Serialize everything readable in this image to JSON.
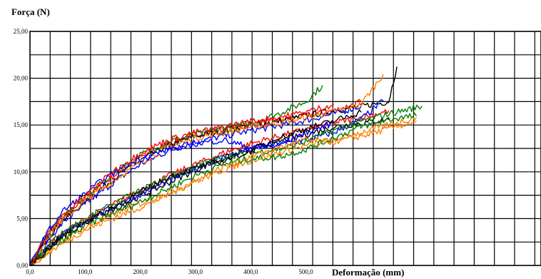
{
  "chart_data": {
    "type": "line",
    "ylabel": "Força (N)",
    "xlabel": "Deformação (mm)",
    "ylim": [
      0,
      25
    ],
    "xlim": [
      0,
      710
    ],
    "yticks": [
      {
        "value": 0,
        "label": "0,00"
      },
      {
        "value": 5,
        "label": "5,00"
      },
      {
        "value": 10,
        "label": "10,00"
      },
      {
        "value": 15,
        "label": "15,00"
      },
      {
        "value": 20,
        "label": "20,00"
      },
      {
        "value": 25,
        "label": "25,00"
      }
    ],
    "xticks": [
      {
        "value": 0,
        "label": "0,0"
      },
      {
        "value": 100,
        "label": "100,0"
      },
      {
        "value": 200,
        "label": "200,0"
      },
      {
        "value": 300,
        "label": "300,0"
      },
      {
        "value": 400,
        "label": "400,0"
      },
      {
        "value": 500,
        "label": "500,0"
      }
    ],
    "grid": true,
    "grid_x_step": 36.6,
    "grid_y_step": 2.5,
    "series": [
      {
        "color": "#ff0000",
        "x": [
          0,
          30,
          60,
          100,
          150,
          200,
          250,
          300,
          350,
          400,
          450,
          500,
          550,
          600
        ],
        "y": [
          0,
          3.0,
          5.0,
          7.0,
          9.5,
          11.5,
          13.0,
          14.0,
          14.5,
          15.0,
          15.5,
          16.0,
          16.5,
          17.5
        ]
      },
      {
        "color": "#000000",
        "x": [
          0,
          30,
          60,
          100,
          150,
          200,
          250,
          300,
          350,
          400,
          450,
          500,
          550,
          600,
          650,
          665
        ],
        "y": [
          0,
          2.8,
          4.8,
          6.8,
          9.2,
          11.2,
          12.8,
          13.8,
          14.4,
          15.0,
          15.4,
          16.0,
          16.5,
          17.0,
          17.5,
          21.2
        ]
      },
      {
        "color": "#0000ff",
        "x": [
          0,
          30,
          60,
          100,
          150,
          200,
          250,
          300,
          350,
          400,
          450,
          500,
          550,
          600
        ],
        "y": [
          0,
          2.6,
          4.6,
          6.5,
          8.8,
          10.8,
          12.2,
          13.2,
          13.8,
          14.4,
          14.9,
          15.5,
          16.2,
          17.0
        ]
      },
      {
        "color": "#008000",
        "x": [
          0,
          30,
          60,
          100,
          150,
          200,
          250,
          300,
          350,
          400,
          450,
          500,
          530
        ],
        "y": [
          0,
          3.2,
          5.3,
          7.3,
          9.8,
          11.8,
          13.2,
          14.0,
          14.6,
          15.2,
          16.2,
          17.5,
          19.2
        ]
      },
      {
        "color": "#ff8000",
        "x": [
          0,
          30,
          60,
          100,
          150,
          200,
          250,
          300,
          350,
          400,
          450,
          500,
          550,
          600,
          640
        ],
        "y": [
          0,
          2.9,
          4.9,
          6.9,
          9.0,
          11.0,
          12.6,
          13.6,
          14.2,
          14.8,
          15.2,
          15.8,
          16.4,
          17.2,
          20.4
        ]
      },
      {
        "color": "#ff0000",
        "x": [
          0,
          40,
          80,
          120,
          160,
          200,
          250,
          300,
          350,
          400,
          450,
          500,
          550,
          600,
          650
        ],
        "y": [
          0,
          2.5,
          4.2,
          5.5,
          6.8,
          8.0,
          9.5,
          10.8,
          12.0,
          13.0,
          13.8,
          14.5,
          15.2,
          15.8,
          16.5
        ]
      },
      {
        "color": "#000000",
        "x": [
          0,
          40,
          80,
          120,
          160,
          200,
          250,
          300,
          350,
          400,
          450,
          500,
          550,
          600,
          650
        ],
        "y": [
          0,
          2.2,
          4.0,
          5.2,
          6.2,
          7.4,
          8.8,
          10.2,
          11.4,
          12.4,
          13.2,
          14.0,
          14.8,
          15.2,
          15.6
        ]
      },
      {
        "color": "#0000ff",
        "x": [
          0,
          40,
          80,
          120,
          160,
          200,
          250,
          300,
          350,
          400,
          450,
          500,
          550,
          600,
          640
        ],
        "y": [
          0,
          2.4,
          4.1,
          5.3,
          6.5,
          7.6,
          9.0,
          10.4,
          11.6,
          12.4,
          13.0,
          13.4,
          14.2,
          15.6,
          17.6
        ]
      },
      {
        "color": "#008000",
        "x": [
          0,
          40,
          80,
          120,
          160,
          200,
          250,
          300,
          350,
          400,
          450,
          500,
          550,
          600,
          650,
          710
        ],
        "y": [
          0,
          2.6,
          4.3,
          5.6,
          6.8,
          8.0,
          9.4,
          10.6,
          11.6,
          12.0,
          12.4,
          13.2,
          14.4,
          15.4,
          16.2,
          17.0
        ]
      },
      {
        "color": "#ff8000",
        "x": [
          0,
          40,
          80,
          120,
          160,
          200,
          250,
          300,
          350,
          400,
          450,
          500,
          550,
          600,
          650,
          700
        ],
        "y": [
          0,
          1.8,
          3.4,
          4.6,
          5.6,
          6.6,
          7.8,
          9.0,
          10.2,
          11.2,
          12.0,
          12.8,
          13.4,
          14.2,
          15.0,
          15.8
        ]
      },
      {
        "color": "#ff8000",
        "x": [
          0,
          50,
          100,
          150,
          200,
          250,
          300,
          350,
          400,
          450,
          500,
          550,
          600,
          650,
          700
        ],
        "y": [
          0,
          2.0,
          3.8,
          5.0,
          6.2,
          7.5,
          9.0,
          10.5,
          11.6,
          12.6,
          13.4,
          13.2,
          13.8,
          14.6,
          15.4
        ]
      },
      {
        "color": "#008000",
        "x": [
          0,
          50,
          100,
          150,
          200,
          250,
          300,
          350,
          400,
          450,
          500,
          550,
          600,
          650,
          700
        ],
        "y": [
          0,
          2.3,
          4.2,
          5.6,
          6.8,
          8.2,
          9.6,
          10.8,
          11.4,
          11.6,
          12.4,
          13.6,
          14.8,
          15.6,
          16.0
        ]
      },
      {
        "color": "#0000ff",
        "x": [
          0,
          30,
          60,
          90,
          120,
          160,
          200,
          250,
          300,
          350,
          400,
          450,
          500,
          550
        ],
        "y": [
          0,
          3.4,
          5.8,
          7.2,
          8.6,
          10.2,
          11.4,
          12.4,
          13.0,
          13.4,
          12.6,
          12.8,
          14.2,
          15.2
        ]
      },
      {
        "color": "#000000",
        "x": [
          0,
          50,
          100,
          150,
          200,
          250,
          300,
          350,
          400,
          450,
          500,
          550,
          600
        ],
        "y": [
          0,
          2.7,
          4.6,
          6.2,
          7.8,
          9.4,
          10.4,
          11.2,
          12.2,
          13.6,
          14.6,
          15.4,
          16.4
        ]
      },
      {
        "color": "#ff0000",
        "x": [
          0,
          30,
          60,
          100,
          150,
          200,
          250,
          300,
          350,
          400,
          450,
          500,
          550
        ],
        "y": [
          0,
          3.1,
          5.4,
          7.4,
          10.0,
          12.0,
          13.4,
          14.2,
          14.8,
          15.4,
          15.8,
          16.4,
          17.2
        ]
      }
    ]
  }
}
